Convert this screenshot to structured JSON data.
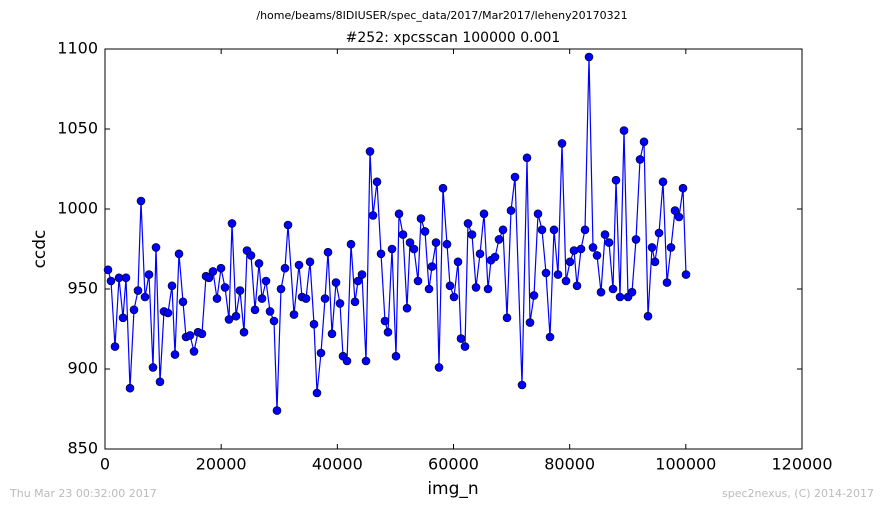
{
  "chart_data": {
    "type": "line",
    "suptitle": "/home/beams/8IDIUSER/spec_data/2017/Mar2017/leheny20170321",
    "title": "#252: xpcsscan 100000 0.001",
    "x_label": "img_n",
    "y_label": "ccdc",
    "footer_left": "Thu Mar 23 00:32:00 2017",
    "footer_right": "spec2nexus, (C) 2014-2017",
    "xlim": [
      0,
      120000
    ],
    "xticks": [
      0,
      20000,
      40000,
      60000,
      80000,
      100000,
      120000
    ],
    "ylim": [
      850,
      1100
    ],
    "yticks": [
      850,
      900,
      950,
      1000,
      1050,
      1100
    ],
    "x": [
      517,
      1033,
      1722,
      2410,
      3099,
      3616,
      4304,
      4993,
      5682,
      6198,
      6887,
      7575,
      8264,
      8781,
      9469,
      10158,
      10847,
      11535,
      12052,
      12740,
      13429,
      13946,
      14634,
      15323,
      16012,
      16700,
      17389,
      17906,
      18594,
      19283,
      19972,
      20660,
      21349,
      21866,
      22554,
      23243,
      23932,
      24448,
      25137,
      25826,
      26514,
      27031,
      27719,
      28408,
      29097,
      29613,
      30302,
      30991,
      31507,
      32540,
      33401,
      33918,
      34606,
      35295,
      35984,
      36500,
      37189,
      37878,
      38394,
      39083,
      39771,
      40460,
      40977,
      41665,
      42354,
      43043,
      43559,
      44248,
      44936,
      45625,
      46142,
      46830,
      47519,
      48208,
      48724,
      49413,
      50101,
      50618,
      51307,
      51995,
      52512,
      53200,
      53889,
      54406,
      55094,
      55783,
      56300,
      56988,
      57505,
      58193,
      58882,
      59399,
      60087,
      60776,
      61293,
      61981,
      62498,
      63186,
      63875,
      64564,
      65252,
      65941,
      66458,
      67146,
      67835,
      68524,
      69212,
      69901,
      70590,
      71795,
      72656,
      73172,
      73861,
      74550,
      75238,
      75927,
      76616,
      77304,
      77993,
      78682,
      79370,
      80059,
      80748,
      81264,
      81953,
      82642,
      83330,
      84019,
      84708,
      85396,
      86085,
      86774,
      87462,
      87979,
      88668,
      89356,
      90045,
      90734,
      91422,
      92111,
      92800,
      93488,
      94177,
      94694,
      95382,
      96071,
      96760,
      97448,
      98137,
      98826,
      99514,
      100031
    ],
    "series": [
      {
        "name": "ccdc",
        "color": "#0000ff",
        "values": [
          962,
          955,
          914,
          957,
          932,
          957,
          888,
          937,
          949,
          1005,
          945,
          959,
          901,
          976,
          892,
          936,
          935,
          952,
          909,
          972,
          942,
          920,
          921,
          911,
          923,
          922,
          958,
          957,
          961,
          944,
          963,
          951,
          931,
          991,
          933,
          949,
          923,
          974,
          971,
          937,
          966,
          944,
          955,
          936,
          930,
          874,
          950,
          963,
          990,
          934,
          965,
          945,
          944,
          967,
          928,
          885,
          910,
          944,
          973,
          922,
          954,
          941,
          908,
          905,
          978,
          942,
          955,
          959,
          905,
          1036,
          996,
          1017,
          972,
          930,
          923,
          975,
          908,
          997,
          984,
          938,
          979,
          975,
          955,
          994,
          986,
          950,
          964,
          979,
          901,
          1013,
          978,
          952,
          945,
          967,
          919,
          914,
          991,
          984,
          951,
          972,
          997,
          950,
          968,
          970,
          981,
          987,
          932,
          999,
          1020,
          890,
          1032,
          929,
          946,
          997,
          987,
          960,
          920,
          987,
          959,
          1041,
          955,
          967,
          974,
          952,
          975,
          987,
          1095,
          976,
          971,
          948,
          984,
          979,
          950,
          1018,
          945,
          1049,
          945,
          948,
          981,
          1031,
          1042,
          933,
          976,
          967,
          985,
          1017,
          954,
          976,
          999,
          995,
          1013,
          959
        ]
      }
    ]
  }
}
